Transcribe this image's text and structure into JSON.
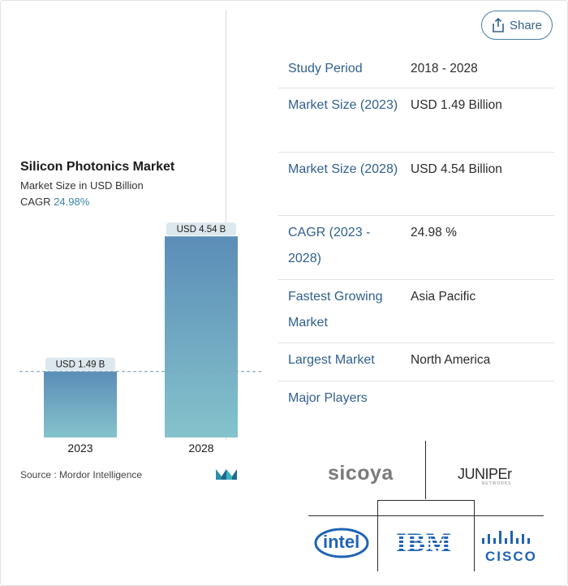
{
  "share": {
    "label": "Share",
    "icon": "share-icon"
  },
  "chart": {
    "title": "Silicon Photonics Market",
    "subtitle": "Market Size in USD Billion",
    "cagr_label": "CAGR",
    "cagr_value": "24.98%",
    "source": "Source :  Mordor Intelligence"
  },
  "chart_data": {
    "type": "bar",
    "categories": [
      "2023",
      "2028"
    ],
    "values": [
      1.49,
      4.54
    ],
    "data_labels": [
      "USD 1.49 B",
      "USD 4.54 B"
    ],
    "ylim": [
      0,
      4.8
    ],
    "reference_line": 1.49,
    "colors": {
      "bar_top": "#5b8db7",
      "bar_bottom": "#84c3cc",
      "label_bg": "#dde8ee",
      "ref_line": "#7fa7b9"
    }
  },
  "table": [
    {
      "label": "Study Period",
      "value": "2018 - 2028"
    },
    {
      "label": "Market Size (2023)",
      "value": "USD 1.49 Billion"
    },
    {
      "label": "Market Size (2028)",
      "value": "USD 4.54 Billion"
    },
    {
      "label": "CAGR (2023 - 2028)",
      "value": "24.98 %"
    },
    {
      "label": "Fastest Growing Market",
      "value": "Asia Pacific"
    },
    {
      "label": "Largest Market",
      "value": "North America"
    },
    {
      "label": "Major Players",
      "value": ""
    }
  ],
  "players": {
    "sicoya": "sicoya",
    "juniper": "JUNIPEr",
    "juniper_sub": "NETWORKS",
    "intel": "intel",
    "ibm": "IBM",
    "cisco": "CISCO"
  },
  "colors": {
    "accent": "#2f5f8f",
    "brand_blue": "#4a7fa6"
  }
}
